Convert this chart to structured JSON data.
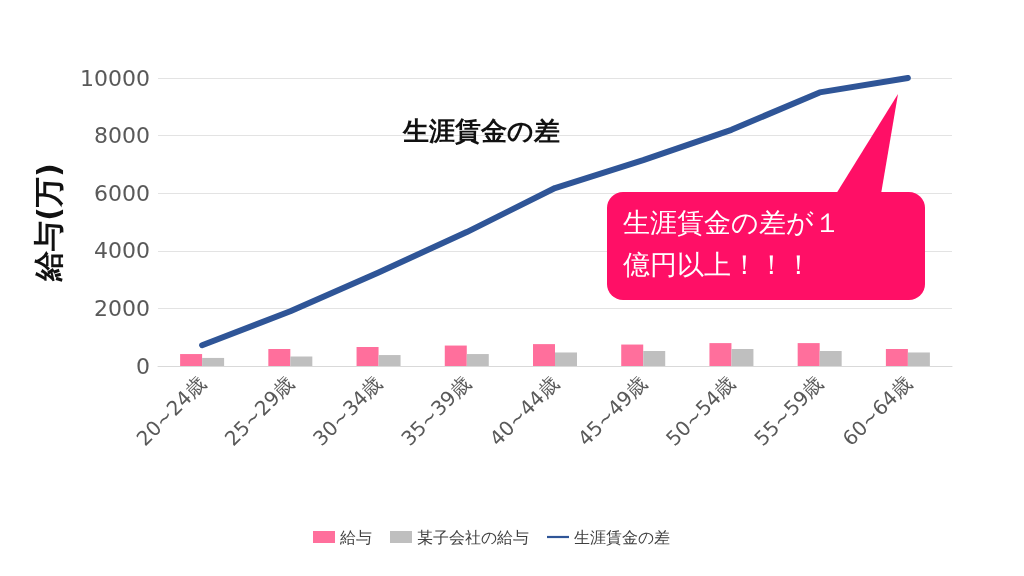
{
  "chart_data": {
    "type": "bar",
    "title": "生涯賃金の差",
    "ylabel": "給与(万)",
    "categories": [
      "20~24歳",
      "25~29歳",
      "30~34歳",
      "35~39歳",
      "40~44歳",
      "45~49歳",
      "50~54歳",
      "55~59歳",
      "60~64歳"
    ],
    "series": [
      {
        "name": "給与",
        "color": "#ff6f9c",
        "values": [
          415,
          590,
          660,
          710,
          760,
          745,
          795,
          795,
          590
        ]
      },
      {
        "name": "某子会社の給与",
        "color": "#bfbfbf",
        "values": [
          280,
          330,
          380,
          415,
          470,
          520,
          590,
          520,
          470
        ]
      },
      {
        "name": "生涯賃金の差",
        "type": "line",
        "color": "#2f5597",
        "values": [
          720,
          1900,
          3250,
          4650,
          6180,
          7150,
          8200,
          9500,
          10000
        ]
      }
    ],
    "ylim": [
      0,
      10000
    ],
    "yticks": [
      0,
      2000,
      4000,
      6000,
      8000,
      10000
    ],
    "grid": "y",
    "legend": "bottom",
    "marker": "none",
    "annotations": [
      "生涯賃金の差が１億円以上！！！"
    ]
  }
}
